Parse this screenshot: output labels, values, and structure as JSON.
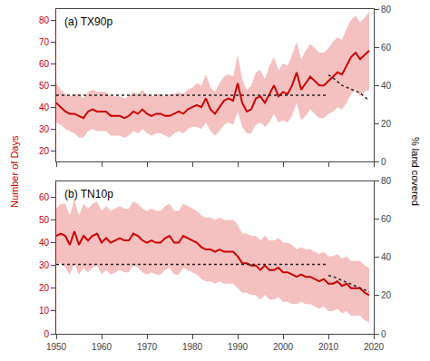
{
  "chart_data": [
    {
      "type": "line",
      "title": "(a) TX90p",
      "ylabel": "Number of Days",
      "y2label": "% land covered",
      "x": [
        1950,
        1951,
        1952,
        1953,
        1954,
        1955,
        1956,
        1957,
        1958,
        1959,
        1960,
        1961,
        1962,
        1963,
        1964,
        1965,
        1966,
        1967,
        1968,
        1969,
        1970,
        1971,
        1972,
        1973,
        1974,
        1975,
        1976,
        1977,
        1978,
        1979,
        1980,
        1981,
        1982,
        1983,
        1984,
        1985,
        1986,
        1987,
        1988,
        1989,
        1990,
        1991,
        1992,
        1993,
        1994,
        1995,
        1996,
        1997,
        1998,
        1999,
        2000,
        2001,
        2002,
        2003,
        2004,
        2005,
        2006,
        2007,
        2008,
        2009,
        2010,
        2011,
        2012,
        2013,
        2014,
        2015,
        2016,
        2017,
        2018,
        2019
      ],
      "xlim": [
        1950,
        2020
      ],
      "xticks": [
        1950,
        1960,
        1970,
        1980,
        1990,
        2000,
        2010,
        2020
      ],
      "ylim": [
        15,
        85
      ],
      "yticks": [
        20,
        30,
        40,
        50,
        60,
        70,
        80
      ],
      "y2lim": [
        0,
        80
      ],
      "y2ticks": [
        0,
        20,
        40,
        60,
        80
      ],
      "grid": false,
      "tick_labels": "y",
      "series": [
        {
          "type": "band",
          "color": "#f5c0c0",
          "lower": [
            33,
            32,
            30,
            29,
            28,
            26,
            26,
            29,
            30,
            29,
            29,
            29,
            27,
            27,
            27,
            26,
            27,
            29,
            28,
            30,
            28,
            27,
            28,
            28,
            27,
            26,
            28,
            29,
            28,
            30,
            31,
            31,
            30,
            33,
            29,
            27,
            29,
            32,
            33,
            32,
            38,
            31,
            28,
            28,
            32,
            33,
            31,
            33,
            37,
            33,
            34,
            33,
            36,
            42,
            34,
            36,
            39,
            37,
            35,
            35,
            37,
            38,
            40,
            39,
            42,
            46,
            48,
            45,
            47,
            48
          ],
          "upper": [
            51,
            48,
            46,
            45,
            46,
            46,
            44,
            47,
            48,
            47,
            47,
            47,
            45,
            45,
            45,
            44,
            45,
            47,
            46,
            48,
            46,
            45,
            46,
            46,
            45,
            46,
            46,
            47,
            46,
            48,
            49,
            51,
            50,
            55,
            49,
            47,
            51,
            54,
            55,
            54,
            64,
            53,
            48,
            50,
            56,
            57,
            53,
            59,
            63,
            57,
            60,
            59,
            64,
            70,
            62,
            66,
            69,
            67,
            65,
            65,
            67,
            70,
            72,
            71,
            76,
            80,
            82,
            79,
            81,
            84
          ]
        },
        {
          "type": "line",
          "color": "#cc0000",
          "values": [
            42,
            40,
            38,
            37,
            37,
            36,
            35,
            38,
            39,
            38,
            38,
            38,
            36,
            36,
            36,
            35,
            36,
            38,
            37,
            39,
            37,
            36,
            37,
            37,
            36,
            36,
            37,
            38,
            37,
            39,
            40,
            41,
            40,
            44,
            39,
            37,
            40,
            43,
            44,
            43,
            51,
            42,
            38,
            39,
            44,
            45,
            42,
            46,
            50,
            45,
            47,
            46,
            50,
            56,
            48,
            51,
            54,
            52,
            50,
            50,
            52,
            54,
            56,
            55,
            59,
            63,
            65,
            62,
            64,
            66
          ]
        },
        {
          "type": "line",
          "line_style": "dotted",
          "color": "#222222",
          "x": [
            1950,
            2010
          ],
          "values": [
            45.5,
            45.5
          ]
        },
        {
          "type": "line",
          "line_style": "dotted",
          "color": "#222222",
          "axis": "y2",
          "x": [
            2010,
            2011,
            2012,
            2013,
            2014,
            2015,
            2016,
            2017,
            2018,
            2019
          ],
          "values": [
            45.5,
            44,
            42,
            40,
            39,
            38,
            37,
            36,
            34,
            32
          ]
        }
      ]
    },
    {
      "type": "line",
      "title": "(b) TN10p",
      "x": [
        1950,
        1951,
        1952,
        1953,
        1954,
        1955,
        1956,
        1957,
        1958,
        1959,
        1960,
        1961,
        1962,
        1963,
        1964,
        1965,
        1966,
        1967,
        1968,
        1969,
        1970,
        1971,
        1972,
        1973,
        1974,
        1975,
        1976,
        1977,
        1978,
        1979,
        1980,
        1981,
        1982,
        1983,
        1984,
        1985,
        1986,
        1987,
        1988,
        1989,
        1990,
        1991,
        1992,
        1993,
        1994,
        1995,
        1996,
        1997,
        1998,
        1999,
        2000,
        2001,
        2002,
        2003,
        2004,
        2005,
        2006,
        2007,
        2008,
        2009,
        2010,
        2011,
        2012,
        2013,
        2014,
        2015,
        2016,
        2017,
        2018,
        2019
      ],
      "xlim": [
        1950,
        2020
      ],
      "xticks": [
        1950,
        1960,
        1970,
        1980,
        1990,
        2000,
        2010,
        2020
      ],
      "ylim": [
        0,
        67
      ],
      "yticks": [
        0,
        10,
        20,
        30,
        40,
        50,
        60
      ],
      "y2lim": [
        0,
        80
      ],
      "y2ticks": [
        0,
        20,
        40,
        60,
        80
      ],
      "grid": false,
      "series": [
        {
          "type": "band",
          "color": "#f5c0c0",
          "lower": [
            31,
            31,
            29,
            26,
            31,
            26,
            29,
            27,
            29,
            30,
            26,
            28,
            26,
            27,
            28,
            27,
            27,
            30,
            29,
            27,
            26,
            27,
            26,
            26,
            28,
            29,
            26,
            26,
            29,
            28,
            27,
            26,
            24,
            23,
            23,
            22,
            23,
            22,
            22,
            22,
            20,
            18,
            18,
            17,
            17,
            15,
            17,
            15,
            15,
            16,
            14,
            14,
            13,
            13,
            14,
            13,
            13,
            12,
            11,
            12,
            10,
            10,
            11,
            9,
            10,
            8,
            8,
            8,
            6,
            5
          ],
          "upper": [
            55,
            57,
            57,
            52,
            59,
            52,
            57,
            55,
            57,
            58,
            54,
            56,
            54,
            55,
            56,
            55,
            55,
            58,
            57,
            55,
            54,
            55,
            54,
            54,
            56,
            57,
            54,
            54,
            57,
            56,
            55,
            54,
            52,
            51,
            51,
            50,
            51,
            50,
            50,
            50,
            48,
            44,
            44,
            43,
            43,
            41,
            43,
            41,
            41,
            42,
            40,
            40,
            39,
            37,
            38,
            37,
            37,
            36,
            35,
            36,
            34,
            34,
            35,
            33,
            34,
            32,
            32,
            32,
            30,
            29
          ]
        },
        {
          "type": "line",
          "color": "#cc0000",
          "values": [
            43,
            44,
            43,
            39,
            45,
            39,
            43,
            41,
            43,
            44,
            40,
            42,
            40,
            41,
            42,
            41,
            41,
            44,
            43,
            41,
            40,
            41,
            40,
            40,
            42,
            43,
            40,
            40,
            43,
            42,
            41,
            40,
            38,
            37,
            37,
            36,
            37,
            36,
            36,
            36,
            34,
            31,
            31,
            30,
            30,
            28,
            30,
            28,
            28,
            29,
            27,
            27,
            26,
            25,
            26,
            25,
            25,
            24,
            23,
            24,
            22,
            22,
            23,
            21,
            22,
            20,
            20,
            20,
            18,
            17
          ]
        },
        {
          "type": "line",
          "line_style": "dotted",
          "color": "#222222",
          "x": [
            1950,
            2010
          ],
          "values": [
            30.5,
            30.5
          ]
        },
        {
          "type": "line",
          "line_style": "dotted",
          "color": "#222222",
          "axis": "y2",
          "x": [
            2010,
            2011,
            2012,
            2013,
            2014,
            2015,
            2016,
            2017,
            2018,
            2019
          ],
          "values": [
            30.5,
            30,
            29,
            28,
            27,
            26,
            25,
            24,
            23,
            22
          ]
        }
      ]
    }
  ]
}
